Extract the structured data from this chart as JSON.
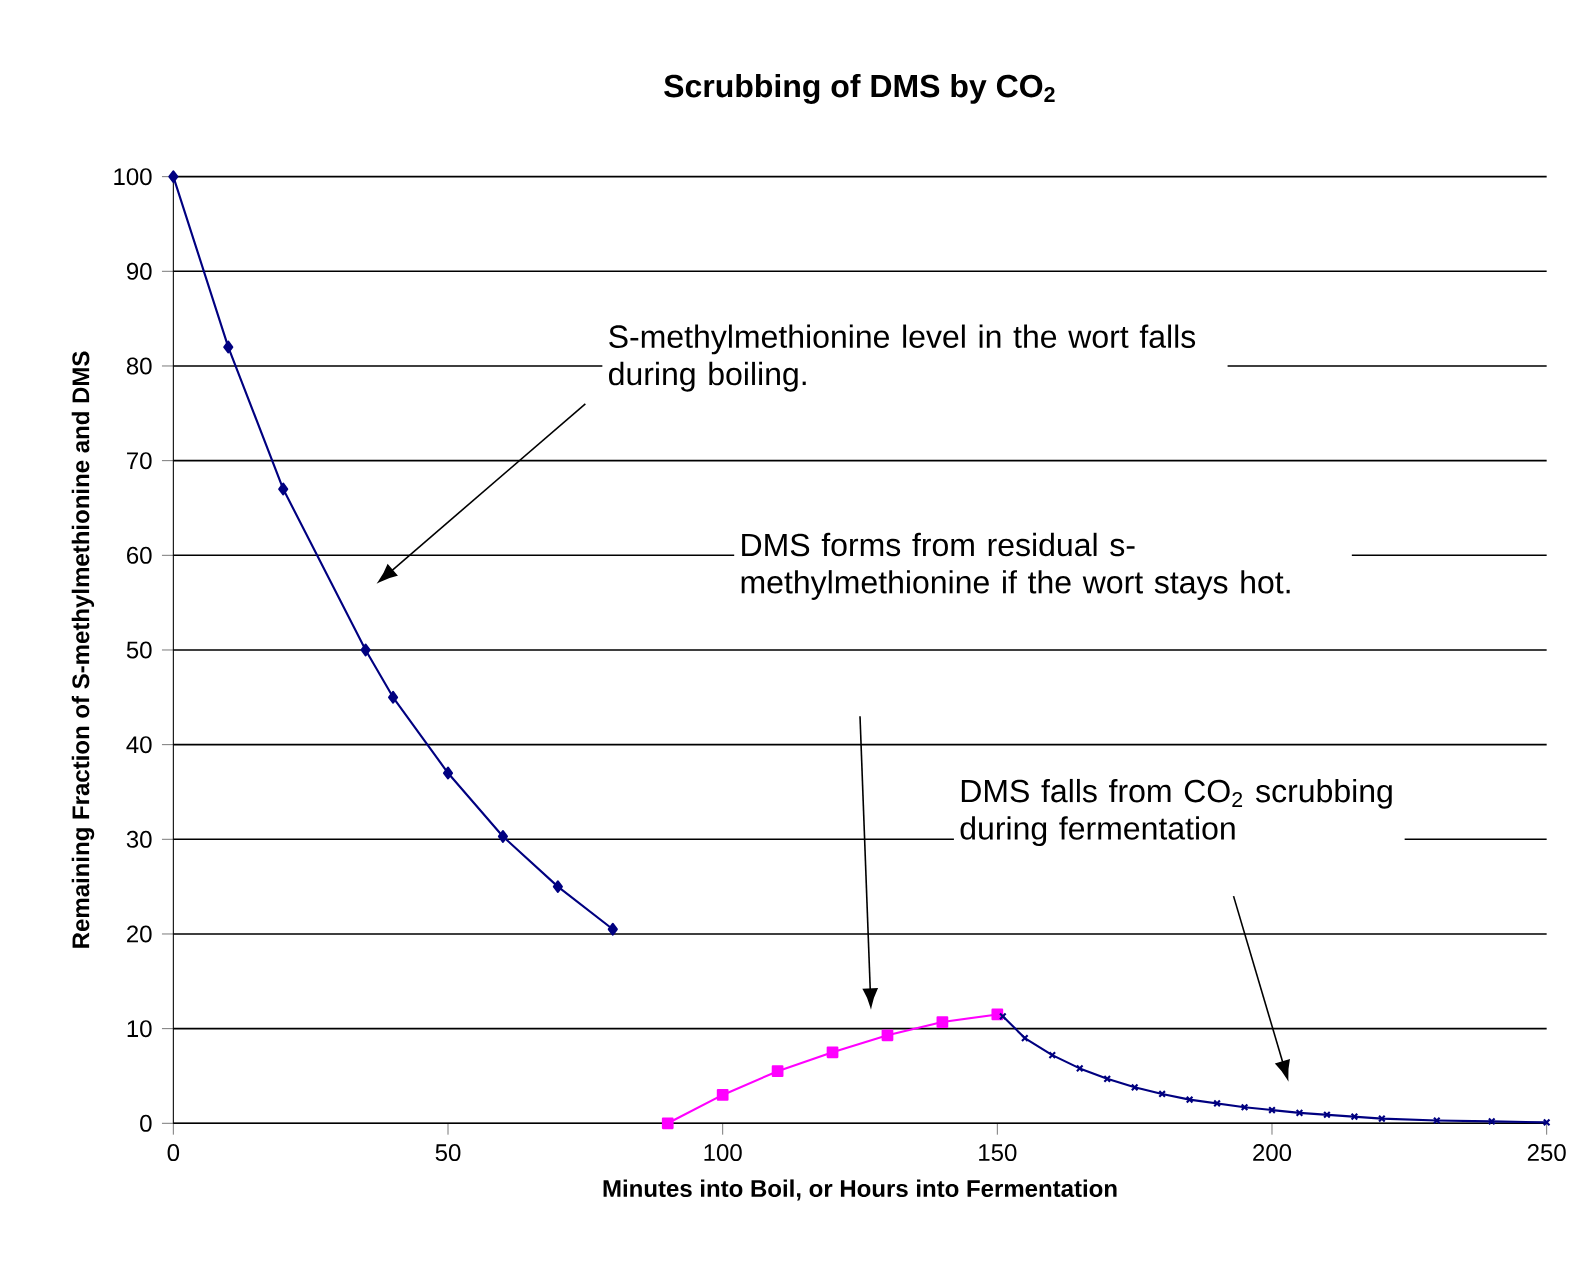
{
  "chart_data": {
    "type": "line",
    "title": "Scrubbing of DMS by CO$_{2}$",
    "xlabel": "Minutes into Boil, or Hours into Fermentation",
    "ylabel": "Remaining Fraction of S-methylmethionine and DMS",
    "xlim": [
      0,
      250
    ],
    "xticks": [
      0,
      50,
      100,
      150,
      200,
      250
    ],
    "ylim": [
      0,
      100
    ],
    "yticks": [
      0,
      10,
      20,
      30,
      40,
      50,
      60,
      70,
      80,
      90,
      100
    ],
    "grid": "y",
    "series": [
      {
        "color": "#000080",
        "marker": "diamond",
        "x": [
          0,
          10,
          20,
          35,
          40,
          50,
          60,
          70,
          80
        ],
        "values": [
          100,
          82,
          67,
          50,
          45,
          37,
          30.3,
          25,
          20.5
        ]
      },
      {
        "color": "#ff00ff",
        "marker": "square",
        "x": [
          90,
          100,
          110,
          120,
          130,
          140,
          150
        ],
        "values": [
          0,
          3,
          5.5,
          7.5,
          9.3,
          10.7,
          11.5
        ]
      },
      {
        "color": "#000080",
        "marker": "cross",
        "x": [
          151,
          155,
          160,
          165,
          170,
          175,
          180,
          185,
          190,
          195,
          200,
          205,
          210,
          215,
          220,
          230,
          240,
          250
        ],
        "values": [
          11.3,
          9,
          7.2,
          5.8,
          4.7,
          3.8,
          3.1,
          2.5,
          2.1,
          1.7,
          1.4,
          1.1,
          0.9,
          0.7,
          0.5,
          0.3,
          0.2,
          0.1
        ]
      }
    ],
    "annotations": [
      "S-methylmethionine level in the wort falls during boiling.",
      "DMS forms from residual s-methylmethionine if the wort stays hot.",
      "DMS falls from CO$_{2}$ scrubbing during fermentation"
    ]
  }
}
